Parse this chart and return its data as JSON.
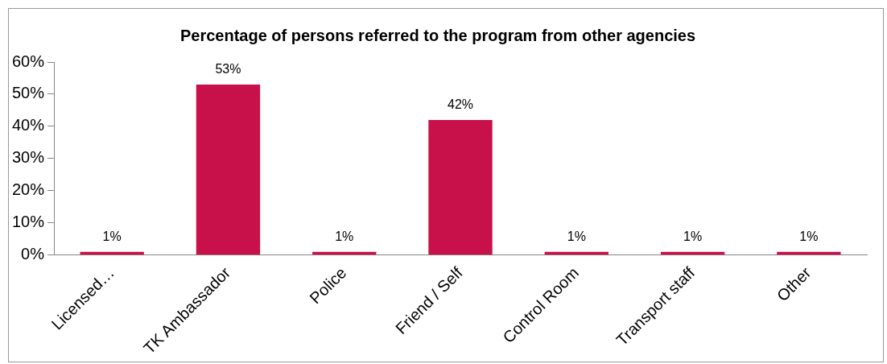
{
  "chart_data": {
    "type": "bar",
    "title": "Percentage of persons referred to the program from other agencies",
    "categories": [
      "Licensed…",
      "TK Ambassador",
      "Police",
      "Friend / Self",
      "Control Room",
      "Transport staff",
      "Other"
    ],
    "values": [
      1,
      53,
      1,
      42,
      1,
      1,
      1
    ],
    "value_labels": [
      "1%",
      "53%",
      "1%",
      "42%",
      "1%",
      "1%",
      "1%"
    ],
    "color": "#c8104a",
    "ylim": [
      0,
      60
    ],
    "yticks": [
      {
        "value": 0,
        "label": "0%"
      },
      {
        "value": 10,
        "label": "10%"
      },
      {
        "value": 20,
        "label": "20%"
      },
      {
        "value": 30,
        "label": "30%"
      },
      {
        "value": 40,
        "label": "40%"
      },
      {
        "value": 50,
        "label": "50%"
      },
      {
        "value": 60,
        "label": "60%"
      }
    ],
    "grid": false,
    "legend": false
  }
}
